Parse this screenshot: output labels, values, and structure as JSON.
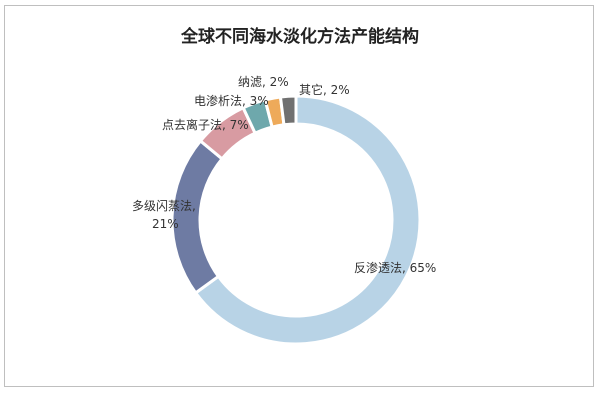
{
  "chart_data": {
    "type": "pie",
    "title": "全球不同海水淡化方法产能结构",
    "categories": [
      "反渗透法",
      "多级闪蒸法",
      "点去离子法",
      "电渗析法",
      "纳滤",
      "其它"
    ],
    "values": [
      65,
      21,
      7,
      3,
      2,
      2
    ],
    "labels": [
      "反渗透法, 65%",
      "多级闪蒸法,",
      "21%",
      "点去离子法, 7%",
      "电渗析法, 3%",
      "纳滤, 2%",
      "其它, 2%"
    ],
    "colors": [
      "#b8d3e6",
      "#6e7ba3",
      "#d89ba2",
      "#6ea8ac",
      "#eeaa5a",
      "#707070"
    ],
    "legend": "none"
  }
}
